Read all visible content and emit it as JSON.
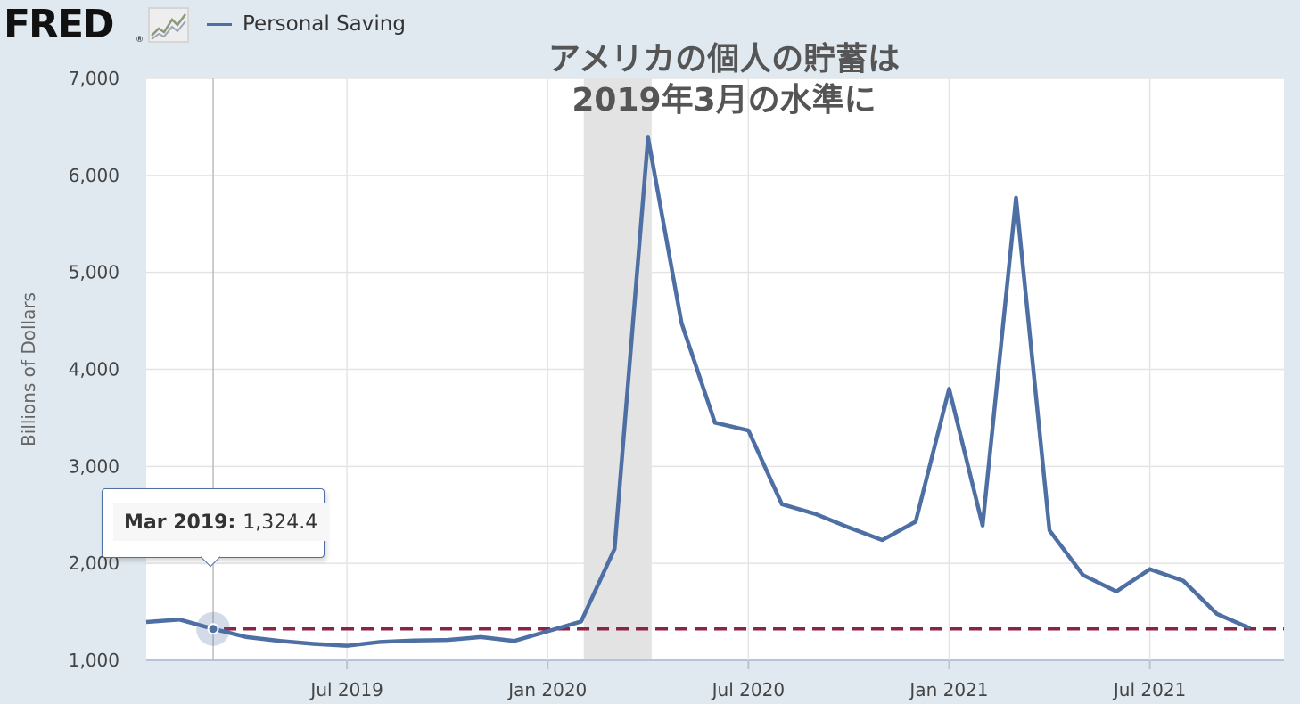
{
  "logo": {
    "text": "FRED",
    "registered": "®"
  },
  "legend": {
    "label": "Personal Saving",
    "color": "#4e6fa3"
  },
  "title": {
    "line1": "アメリカの個人の貯蓄は",
    "line2": "2019年3月の水準に"
  },
  "tooltip": {
    "date": "Mar 2019:",
    "value": "1,324.4"
  },
  "colors": {
    "series": "#4e6fa3",
    "reference": "#8b2346",
    "recession": "#e3e3e3",
    "grid": "#e4e4e4",
    "plot_bg": "#ffffff",
    "page_bg": "#e1e9f0"
  },
  "chart_data": {
    "type": "line",
    "ylabel": "Billions of Dollars",
    "ylim": [
      1000,
      7000
    ],
    "yticks": [
      1000,
      2000,
      3000,
      4000,
      5000,
      6000,
      7000
    ],
    "ytick_labels": [
      "1,000",
      "2,000",
      "3,000",
      "4,000",
      "5,000",
      "6,000",
      "7,000"
    ],
    "xticks": [
      "2019-07",
      "2020-01",
      "2020-07",
      "2021-01",
      "2021-07"
    ],
    "xtick_labels": [
      "Jul 2019",
      "Jan 2020",
      "Jul 2020",
      "Jan 2021",
      "Jul 2021"
    ],
    "grid": true,
    "recession": [
      "2020-02",
      "2020-04"
    ],
    "reference_line": {
      "value": 1324.4,
      "style": "dashed"
    },
    "highlight": {
      "x": "2019-03",
      "y": 1324.4
    },
    "series": [
      {
        "name": "Personal Saving",
        "x": [
          "2019-01",
          "2019-02",
          "2019-03",
          "2019-04",
          "2019-05",
          "2019-06",
          "2019-07",
          "2019-08",
          "2019-09",
          "2019-10",
          "2019-11",
          "2019-12",
          "2020-01",
          "2020-02",
          "2020-03",
          "2020-04",
          "2020-05",
          "2020-06",
          "2020-07",
          "2020-08",
          "2020-09",
          "2020-10",
          "2020-11",
          "2020-12",
          "2021-01",
          "2021-02",
          "2021-03",
          "2021-04",
          "2021-05",
          "2021-06",
          "2021-07",
          "2021-08",
          "2021-09",
          "2021-10"
        ],
        "values": [
          1395,
          1420,
          1324.4,
          1240,
          1200,
          1170,
          1150,
          1190,
          1205,
          1210,
          1240,
          1200,
          1300,
          1400,
          2150,
          6390,
          4480,
          3450,
          3370,
          2610,
          2510,
          2370,
          2240,
          2430,
          3800,
          2390,
          5770,
          2340,
          1880,
          1710,
          1940,
          1820,
          1480,
          1330
        ]
      }
    ]
  }
}
